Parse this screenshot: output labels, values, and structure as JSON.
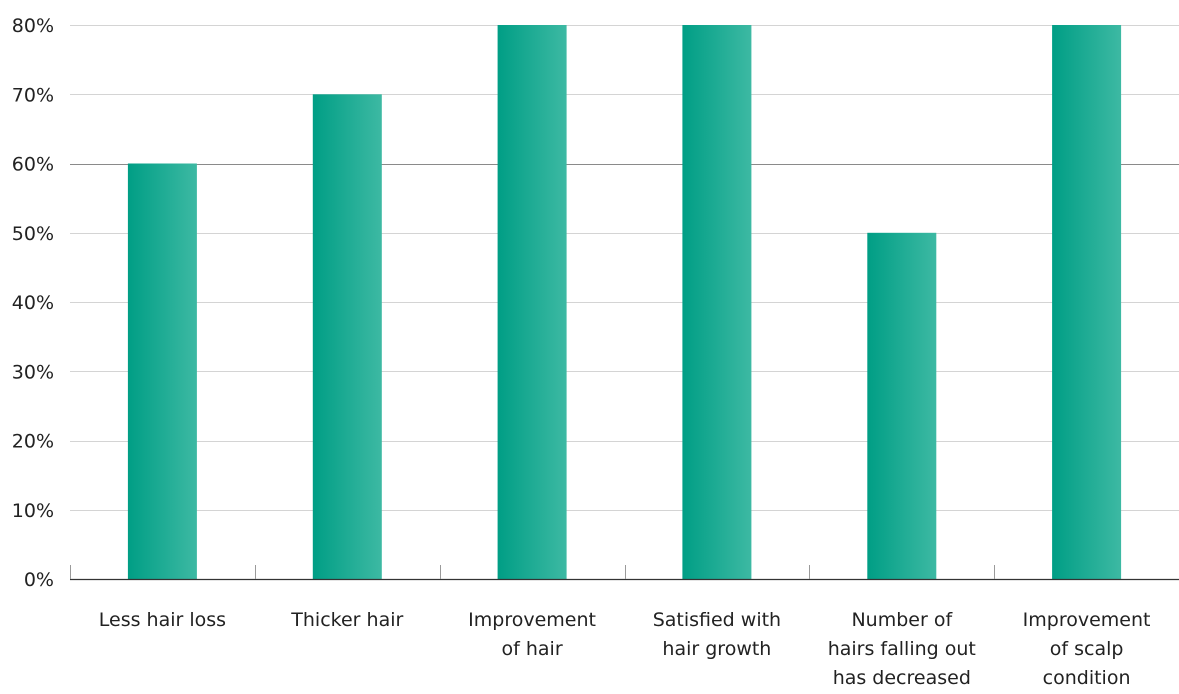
{
  "chart_data": {
    "type": "bar",
    "title": "",
    "xlabel": "",
    "ylabel": "",
    "categories": [
      [
        "Less hair loss"
      ],
      [
        "Thicker hair"
      ],
      [
        "Improvement",
        "of hair"
      ],
      [
        "Satisfied with",
        "hair growth"
      ],
      [
        "Number of",
        "hairs falling out",
        "has decreased"
      ],
      [
        "Improvement",
        "of scalp",
        "condition"
      ]
    ],
    "values": [
      60,
      70,
      80,
      80,
      50,
      80
    ],
    "ylim": [
      0,
      80
    ],
    "yticks": [
      "0%",
      "10%",
      "20%",
      "30%",
      "40%",
      "50%",
      "60%",
      "70%",
      "80%"
    ],
    "grid": true,
    "legend": "none",
    "colors": {
      "bar_left": "#009e85",
      "bar_right": "#3db9a3",
      "grid": "#d4d4d4",
      "grid_dark": "#8a8a8a",
      "axis": "#333333",
      "text": "#222222"
    }
  }
}
